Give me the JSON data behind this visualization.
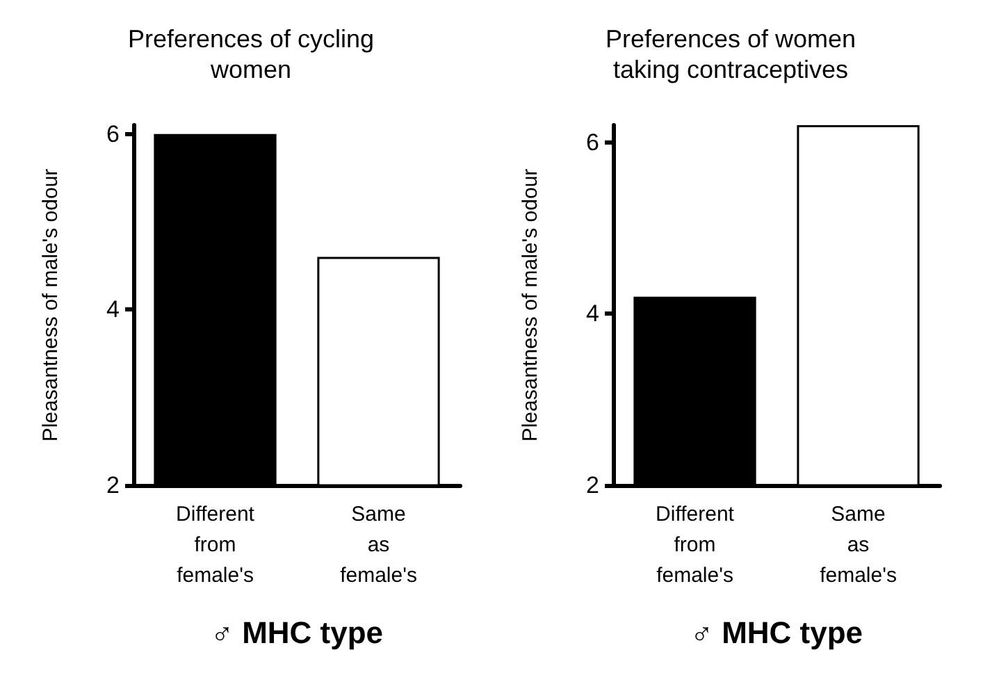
{
  "chart_data": [
    {
      "type": "bar",
      "title": "Preferences of cycling\nwomen",
      "xlabel": "♂ MHC type",
      "ylabel": "Pleasantness of male's odour",
      "categories": [
        "Different\nfrom\nfemale's",
        "Same\nas\nfemale's"
      ],
      "values": [
        6.0,
        4.6
      ],
      "colors": [
        "#000000",
        "#ffffff"
      ],
      "ylim": [
        2,
        6.1
      ],
      "yticks": [
        2,
        4,
        6
      ],
      "grid": false
    },
    {
      "type": "bar",
      "title": "Preferences of women\ntaking contraceptives",
      "xlabel": "♂ MHC type",
      "ylabel": "Pleasantness of male's odour",
      "categories": [
        "Different\nfrom\nfemale's",
        "Same\nas\nfemale's"
      ],
      "values": [
        4.2,
        6.2
      ],
      "colors": [
        "#000000",
        "#ffffff"
      ],
      "ylim": [
        2,
        6.2
      ],
      "yticks": [
        2,
        4,
        6
      ],
      "grid": false
    }
  ]
}
